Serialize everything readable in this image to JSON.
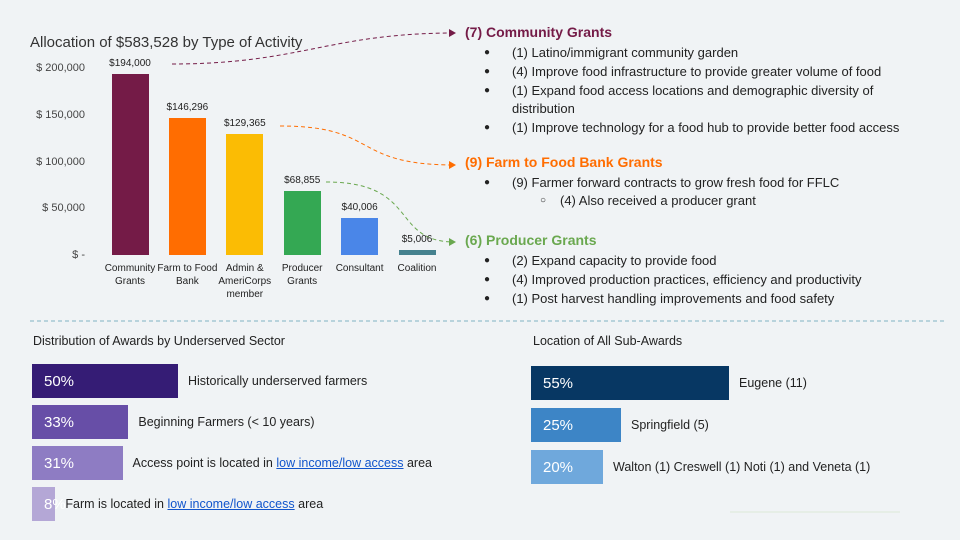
{
  "chart_data": [
    {
      "type": "bar",
      "title": "Allocation of $583,528 by Type of Activity",
      "categories": [
        "Community Grants",
        "Farm to Food Bank",
        "Admin & AmeriCorps member",
        "Producer Grants",
        "Consultant",
        "Coalition"
      ],
      "values": [
        194000,
        146296,
        129365,
        68855,
        40006,
        5006
      ],
      "value_labels": [
        "$194,000",
        "$146,296",
        "$129,365",
        "$68,855",
        "$40,006",
        "$5,006"
      ],
      "colors": [
        "#741b47",
        "#ff6d01",
        "#fbbc04",
        "#34a853",
        "#4a86e8",
        "#45818e"
      ],
      "ylim": [
        0,
        200000
      ],
      "yticks": [
        {
          "value": 0,
          "label": "$ -"
        },
        {
          "value": 50000,
          "label": "$ 50,000"
        },
        {
          "value": 100000,
          "label": "$ 100,000"
        },
        {
          "value": 150000,
          "label": "$ 150,000"
        },
        {
          "value": 200000,
          "label": "$ 200,000"
        }
      ]
    },
    {
      "type": "hbar",
      "title": "Distribution of Awards by Underserved Sector",
      "categories": [
        "Historically underserved farmers",
        "Beginning Farmers (< 10 years)",
        [
          {
            "text": "Access point is located in"
          },
          {
            "text": "low income/low access",
            "link": true
          },
          {
            "text": "area"
          }
        ],
        [
          {
            "text": "Farm is located in"
          },
          {
            "text": "low income/low access",
            "link": true
          },
          {
            "text": "area"
          }
        ]
      ],
      "values": [
        50,
        33,
        31,
        8
      ],
      "value_labels": [
        "50%",
        "33%",
        "31%",
        "8%"
      ],
      "colors": [
        "#351c75",
        "#674ea7",
        "#8e7cc3",
        "#b4a7d6"
      ]
    },
    {
      "type": "hbar",
      "title": "Location of All Sub-Awards",
      "categories": [
        "Eugene (11)",
        "Springfield (5)",
        "Walton (1) Creswell (1) Noti (1) and Veneta (1)"
      ],
      "values": [
        55,
        25,
        20
      ],
      "value_labels": [
        "55%",
        "25%",
        "20%"
      ],
      "colors": [
        "#073763",
        "#3d85c6",
        "#6fa8dc"
      ]
    }
  ],
  "grant_lists": [
    {
      "title": "(7) Community Grants",
      "color": "#741b47",
      "items": [
        {
          "text": "(1) Latino/immigrant community garden"
        },
        {
          "text": "(4) Improve food infrastructure to provide greater volume of food"
        },
        {
          "text": "(1) Expand food access locations and demographic diversity of distribution"
        },
        {
          "text": "(1) Improve technology for a food hub to provide better food access"
        }
      ]
    },
    {
      "title": "(9) Farm to Food Bank Grants",
      "color": "#ff6d01",
      "items": [
        {
          "text": "(9) Farmer forward contracts to grow fresh food for FFLC",
          "subitems": [
            {
              "text": "(4) Also received a producer grant"
            }
          ]
        }
      ]
    },
    {
      "title": "(6) Producer Grants",
      "color": "#6aa84f",
      "items": [
        {
          "text": "(2) Expand capacity to provide food"
        },
        {
          "text": "(4) Improved production practices, efficiency and productivity"
        },
        {
          "text": "(1) Post harvest handling improvements and food safety"
        }
      ]
    }
  ]
}
